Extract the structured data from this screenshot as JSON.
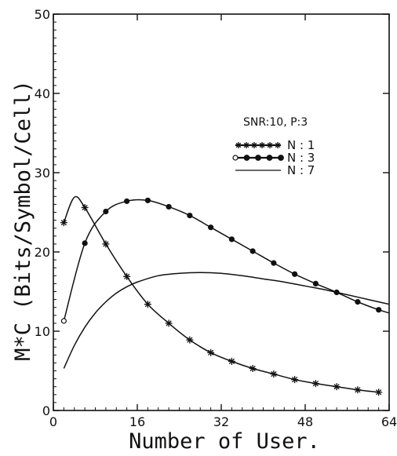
{
  "chart_data": {
    "type": "line",
    "title": "",
    "xlabel": "Number of User.",
    "ylabel": "M*C (Bits/Symbol/Cell)",
    "annotation": "SNR:10, P:3",
    "xlim": [
      0,
      64
    ],
    "ylim": [
      0,
      50
    ],
    "x_ticks": [
      0,
      16,
      32,
      48,
      64
    ],
    "x_tick_labels": [
      "0",
      "16",
      "32",
      "48",
      "64"
    ],
    "y_ticks": [
      0,
      10,
      20,
      30,
      40,
      50
    ],
    "y_tick_labels": [
      "0",
      "10",
      "20",
      "30",
      "40",
      "50"
    ],
    "grid": false,
    "legend_position": "upper-right",
    "series": [
      {
        "name": "N : 1",
        "marker": "star",
        "x": [
          2,
          4,
          6,
          10,
          14,
          18,
          22,
          26,
          30,
          34,
          38,
          42,
          46,
          50,
          54,
          58,
          62
        ],
        "y": [
          23.7,
          26.9,
          25.6,
          21.0,
          16.9,
          13.4,
          11.0,
          8.9,
          7.3,
          6.2,
          5.3,
          4.6,
          3.9,
          3.4,
          3.0,
          2.6,
          2.3
        ],
        "markers_x": [
          2,
          6,
          10,
          14,
          18,
          22,
          26,
          30,
          34,
          38,
          42,
          46,
          50,
          54,
          58,
          62
        ],
        "markers_y": [
          23.7,
          25.6,
          21.0,
          16.9,
          13.4,
          11.0,
          8.9,
          7.3,
          6.2,
          5.3,
          4.6,
          3.9,
          3.4,
          3.0,
          2.6,
          2.3
        ]
      },
      {
        "name": "N : 3",
        "marker": "circle",
        "x": [
          2,
          6,
          10,
          14,
          18,
          22,
          26,
          30,
          34,
          38,
          42,
          46,
          50,
          54,
          58,
          62,
          64
        ],
        "y": [
          11.3,
          21.1,
          25.1,
          26.4,
          26.5,
          25.7,
          24.6,
          23.1,
          21.6,
          20.1,
          18.6,
          17.2,
          16.0,
          14.9,
          13.7,
          12.7,
          12.3
        ]
      },
      {
        "name": "N : 7",
        "marker": "none",
        "x": [
          2,
          4,
          6,
          8,
          10,
          12,
          14,
          16,
          20,
          24,
          28,
          32,
          36,
          40,
          44,
          48,
          52,
          56,
          60,
          64
        ],
        "y": [
          5.3,
          8.2,
          10.5,
          12.3,
          13.7,
          14.8,
          15.6,
          16.2,
          17.0,
          17.3,
          17.4,
          17.3,
          17.0,
          16.6,
          16.2,
          15.7,
          15.2,
          14.6,
          14.0,
          13.4
        ]
      }
    ]
  }
}
